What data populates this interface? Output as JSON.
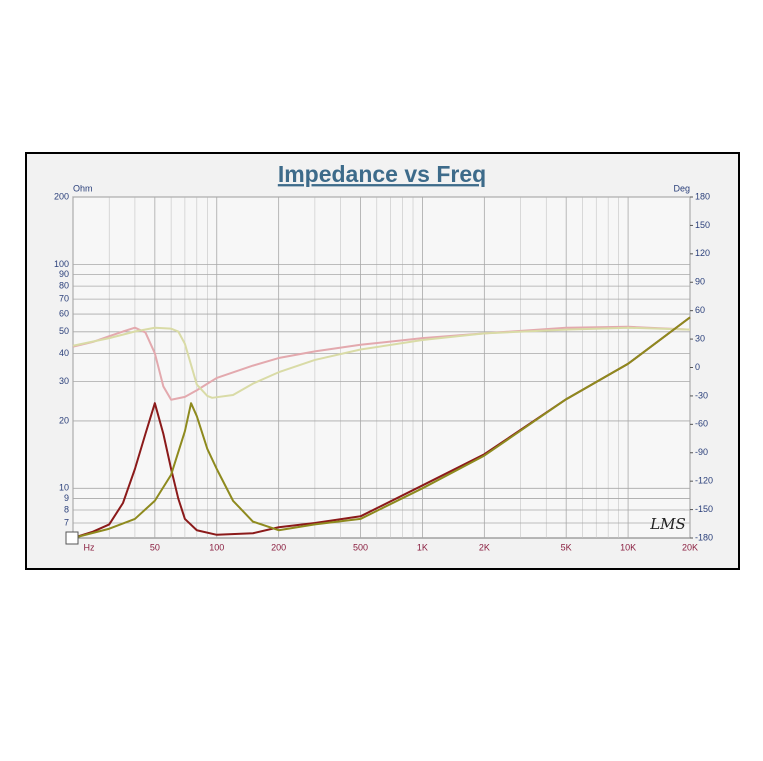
{
  "chart_data": {
    "type": "line",
    "title": "Impedance vs Freq",
    "y_label": "Ohm",
    "y2_label": "Deg",
    "watermark": "LMS",
    "log_x": true,
    "log_y": true,
    "grid": true,
    "xlim": [
      20,
      20000
    ],
    "xticks": [
      {
        "value": 20,
        "label": "Hz"
      },
      50,
      100,
      200,
      500,
      {
        "value": 1000,
        "label": "1K"
      },
      {
        "value": 2000,
        "label": "2K"
      },
      {
        "value": 5000,
        "label": "5K"
      },
      {
        "value": 10000,
        "label": "10K"
      },
      {
        "value": 20000,
        "label": "20K"
      }
    ],
    "xminorticks": [
      30,
      40,
      60,
      70,
      80,
      90,
      300,
      400,
      600,
      700,
      800,
      900,
      3000,
      4000,
      6000,
      7000,
      8000,
      9000
    ],
    "ylim": [
      6,
      200
    ],
    "yticks": [
      200,
      100,
      90,
      80,
      70,
      60,
      50,
      40,
      30,
      20,
      10,
      9,
      8,
      7
    ],
    "y2lim": [
      -180,
      180
    ],
    "y2ticks": [
      180,
      150,
      120,
      90,
      60,
      30,
      0,
      -30,
      -60,
      -90,
      -120,
      -150,
      -180
    ],
    "series": [
      {
        "color": "#e3a9ae",
        "axis": "y2",
        "x": [
          20,
          25,
          30,
          35,
          40,
          45,
          50,
          55,
          60,
          70,
          80,
          100,
          150,
          200,
          300,
          500,
          1000,
          2000,
          5000,
          10000,
          20000
        ],
        "values": [
          22,
          27,
          33,
          38,
          42,
          37,
          15,
          -20,
          -34,
          -31,
          -24,
          -11,
          2,
          10,
          17,
          24,
          31,
          36,
          42,
          43,
          40
        ]
      },
      {
        "color": "#d9dba6",
        "axis": "y2",
        "x": [
          20,
          30,
          40,
          50,
          60,
          65,
          70,
          80,
          90,
          95,
          120,
          150,
          200,
          300,
          500,
          1000,
          2000,
          5000,
          10000,
          20000
        ],
        "values": [
          23,
          31,
          38,
          42,
          41,
          38,
          25,
          -18,
          -30,
          -32,
          -29,
          -17,
          -5,
          8,
          19,
          29,
          36,
          40,
          42,
          40
        ]
      },
      {
        "color": "#8b1a1a",
        "axis": "y",
        "x": [
          20,
          25,
          30,
          35,
          40,
          45,
          50,
          55,
          60,
          65,
          70,
          80,
          100,
          150,
          200,
          300,
          500,
          1000,
          2000,
          5000,
          10000,
          20000
        ],
        "values": [
          6.0,
          6.4,
          6.9,
          8.6,
          12.2,
          17.5,
          24,
          17.5,
          12.2,
          9.0,
          7.3,
          6.5,
          6.2,
          6.3,
          6.7,
          7.0,
          7.5,
          10.3,
          14.2,
          25,
          36,
          58
        ]
      },
      {
        "color": "#8e8a1e",
        "axis": "y",
        "x": [
          20,
          30,
          40,
          50,
          60,
          70,
          75,
          80,
          90,
          100,
          120,
          150,
          200,
          300,
          500,
          1000,
          2000,
          5000,
          10000,
          20000
        ],
        "values": [
          6.0,
          6.6,
          7.3,
          8.8,
          11.5,
          18,
          24,
          21,
          15,
          12.2,
          8.8,
          7.1,
          6.5,
          6.9,
          7.3,
          10.0,
          14.0,
          25,
          36,
          58
        ]
      }
    ]
  }
}
